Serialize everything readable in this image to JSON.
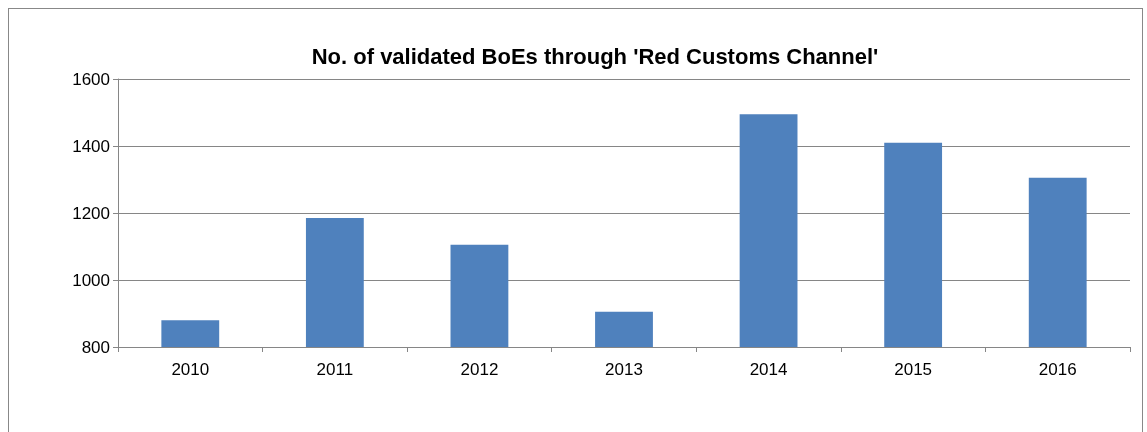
{
  "chart_data": {
    "type": "bar",
    "title": "No. of validated BoEs through 'Red Customs Channel'",
    "categories": [
      "2010",
      "2011",
      "2012",
      "2013",
      "2014",
      "2015",
      "2016"
    ],
    "values": [
      880,
      1185,
      1105,
      905,
      1495,
      1410,
      1305
    ],
    "color": "#4f81bd",
    "ylim": [
      800,
      1600
    ],
    "yticks": [
      800,
      1000,
      1200,
      1400,
      1600
    ],
    "grid": "y"
  }
}
